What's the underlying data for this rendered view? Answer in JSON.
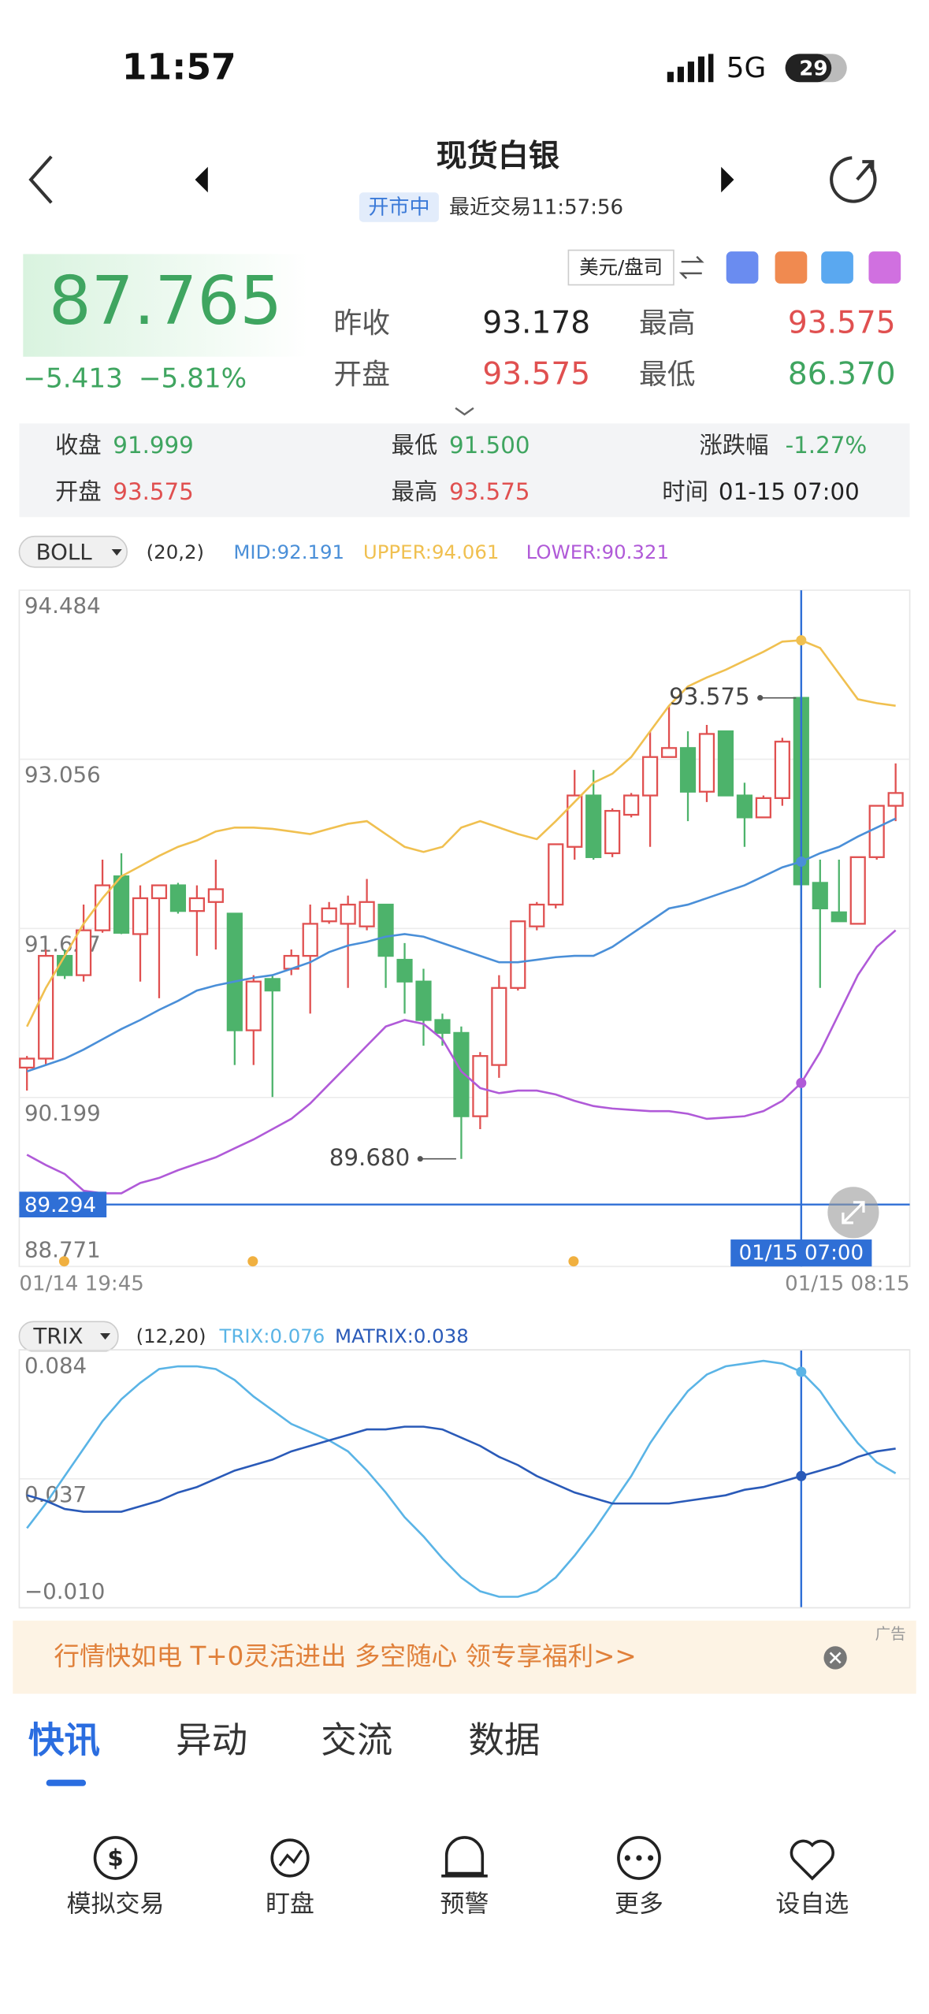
{
  "status": {
    "time": "11:57",
    "network": "5G",
    "battery": "29"
  },
  "header": {
    "title": "现货白银",
    "market_status": "开市中",
    "last_trade": "最近交易11:57:56"
  },
  "quote": {
    "price": "87.765",
    "change": "−5.413",
    "change_pct": "−5.81%",
    "unit": "美元/盘司",
    "stats": [
      {
        "label": "昨收",
        "value": "93.178"
      },
      {
        "label": "最高",
        "value": "93.575"
      },
      {
        "label": "开盘",
        "value": "93.575"
      },
      {
        "label": "最低",
        "value": "86.370"
      }
    ]
  },
  "info": [
    {
      "label": "收盘",
      "value": "91.999"
    },
    {
      "label": "最低",
      "value": "91.500"
    },
    {
      "label": "涨跌幅",
      "value": "-1.27%"
    },
    {
      "label": "开盘",
      "value": "93.575"
    },
    {
      "label": "最高",
      "value": "93.575"
    },
    {
      "label": "时间",
      "value": "01-15 07:00"
    }
  ],
  "chart_data": [
    {
      "type": "candlestick",
      "indicator": "BOLL",
      "params": "(20,2)",
      "grid": true,
      "up_color": "#e05050",
      "down_color": "#4db36b",
      "categories": [
        "01/14 19:45",
        null,
        null,
        null,
        null,
        null,
        null,
        null,
        null,
        null,
        null,
        null,
        null,
        null,
        null,
        null,
        null,
        null,
        null,
        null,
        null,
        null,
        null,
        null,
        null,
        null,
        null,
        null,
        null,
        null,
        null,
        null,
        null,
        null,
        null,
        null,
        null,
        null,
        null,
        null,
        null,
        "01/15 07:00",
        null,
        null,
        null,
        null,
        "01/15 08:15"
      ],
      "open": [
        90.451,
        90.527,
        91.395,
        91.232,
        91.611,
        92.067,
        91.579,
        91.882,
        91.991,
        91.774,
        91.85,
        91.752,
        90.766,
        91.2,
        91.286,
        91.395,
        91.687,
        91.666,
        91.644,
        91.828,
        91.362,
        91.178,
        90.853,
        90.744,
        90.04,
        90.473,
        91.124,
        91.644,
        91.828,
        92.316,
        92.75,
        92.262,
        92.587,
        92.75,
        93.075,
        93.151,
        92.782,
        93.292,
        92.75,
        92.565,
        92.728,
        93.575,
        92.012,
        91.763,
        91.666,
        92.229,
        92.663
      ],
      "high": [
        90.549,
        91.449,
        91.449,
        91.828,
        92.208,
        92.262,
        91.991,
        91.991,
        92.012,
        91.991,
        92.208,
        91.752,
        91.232,
        91.232,
        91.449,
        91.828,
        91.85,
        91.904,
        92.045,
        91.828,
        91.503,
        91.286,
        90.907,
        90.798,
        90.582,
        91.232,
        91.687,
        91.85,
        92.338,
        92.966,
        92.966,
        92.641,
        92.771,
        93.292,
        93.508,
        93.292,
        93.346,
        93.292,
        92.858,
        92.75,
        93.237,
        93.575,
        92.208,
        92.208,
        92.229,
        92.663,
        93.021
      ],
      "low": [
        90.257,
        90.473,
        91.2,
        91.178,
        91.59,
        91.579,
        91.178,
        91.037,
        91.752,
        91.395,
        91.449,
        90.473,
        90.473,
        90.202,
        91.232,
        90.907,
        91.666,
        91.124,
        91.611,
        91.124,
        90.907,
        90.636,
        90.636,
        89.68,
        89.931,
        90.365,
        91.102,
        91.611,
        91.796,
        92.208,
        92.208,
        92.229,
        92.565,
        92.316,
        93.075,
        92.533,
        92.695,
        92.75,
        92.316,
        92.565,
        92.663,
        91.5,
        91.124,
        91.687,
        91.666,
        92.208,
        92.533
      ],
      "close": [
        90.527,
        91.395,
        91.232,
        91.611,
        91.991,
        91.59,
        91.882,
        91.991,
        91.774,
        91.882,
        91.958,
        90.766,
        91.178,
        91.102,
        91.395,
        91.666,
        91.796,
        91.828,
        91.85,
        91.395,
        91.178,
        90.853,
        90.744,
        90.04,
        90.549,
        91.124,
        91.687,
        91.828,
        92.338,
        92.75,
        92.229,
        92.62,
        92.75,
        93.075,
        93.151,
        92.782,
        93.27,
        92.75,
        92.565,
        92.728,
        93.205,
        91.999,
        91.796,
        91.687,
        92.229,
        92.663,
        92.771
      ],
      "series": [
        {
          "name": "MID:92.191",
          "color": "#4a8fd8",
          "values": [
            90.419,
            90.473,
            90.527,
            90.603,
            90.69,
            90.777,
            90.853,
            90.939,
            91.015,
            91.102,
            91.145,
            91.178,
            91.21,
            91.232,
            91.286,
            91.341,
            91.427,
            91.482,
            91.514,
            91.557,
            91.579,
            91.557,
            91.503,
            91.449,
            91.395,
            91.341,
            91.341,
            91.362,
            91.384,
            91.395,
            91.395,
            91.471,
            91.579,
            91.687,
            91.796,
            91.828,
            91.882,
            91.937,
            91.991,
            92.067,
            92.143,
            92.191,
            92.262,
            92.316,
            92.403,
            92.479,
            92.555
          ]
        },
        {
          "name": "UPPER:94.061",
          "color": "#f0c050",
          "values": [
            90.798,
            91.124,
            91.395,
            91.666,
            91.882,
            92.067,
            92.153,
            92.24,
            92.316,
            92.37,
            92.446,
            92.479,
            92.479,
            92.468,
            92.446,
            92.424,
            92.468,
            92.511,
            92.533,
            92.424,
            92.316,
            92.273,
            92.316,
            92.479,
            92.533,
            92.479,
            92.424,
            92.381,
            92.533,
            92.695,
            92.858,
            92.934,
            93.075,
            93.292,
            93.508,
            93.671,
            93.747,
            93.812,
            93.888,
            93.964,
            94.05,
            94.061,
            93.996,
            93.779,
            93.563,
            93.53,
            93.508
          ]
        },
        {
          "name": "LOWER:90.321",
          "color": "#b05ad8",
          "values": [
            89.715,
            89.628,
            89.552,
            89.411,
            89.389,
            89.389,
            89.476,
            89.519,
            89.584,
            89.639,
            89.693,
            89.769,
            89.844,
            89.931,
            90.018,
            90.148,
            90.311,
            90.473,
            90.636,
            90.798,
            90.853,
            90.82,
            90.69,
            90.419,
            90.278,
            90.235,
            90.257,
            90.257,
            90.224,
            90.17,
            90.126,
            90.105,
            90.094,
            90.083,
            90.083,
            90.061,
            90.018,
            90.029,
            90.04,
            90.083,
            90.17,
            90.321,
            90.582,
            90.907,
            91.232,
            91.471,
            91.611
          ]
        }
      ],
      "ylim": [
        88.771,
        94.484
      ],
      "yticks": [
        94.484,
        93.056,
        91.627,
        90.199,
        88.771
      ],
      "crosshair": {
        "x": "01/15 07:00",
        "y": 89.294
      },
      "annotations": [
        {
          "text": "93.575",
          "value": 93.575
        },
        {
          "text": "89.680",
          "value": 89.68
        }
      ]
    },
    {
      "type": "line",
      "indicator": "TRIX",
      "params": "(12,20)",
      "grid": true,
      "series": [
        {
          "name": "TRIX:0.076",
          "color": "#5ab4e6",
          "values": [
            0.019,
            0.028,
            0.038,
            0.048,
            0.058,
            0.066,
            0.072,
            0.077,
            0.078,
            0.078,
            0.077,
            0.073,
            0.067,
            0.062,
            0.057,
            0.054,
            0.051,
            0.047,
            0.04,
            0.032,
            0.023,
            0.016,
            0.008,
            0.001,
            -0.004,
            -0.006,
            -0.006,
            -0.004,
            0.001,
            0.009,
            0.018,
            0.028,
            0.038,
            0.05,
            0.06,
            0.069,
            0.075,
            0.078,
            0.079,
            0.08,
            0.079,
            0.076,
            0.069,
            0.059,
            0.05,
            0.043,
            0.039
          ]
        },
        {
          "name": "MATRIX:0.038",
          "color": "#2a5ab8",
          "values": [
            0.031,
            0.029,
            0.026,
            0.025,
            0.025,
            0.025,
            0.027,
            0.029,
            0.032,
            0.034,
            0.037,
            0.04,
            0.042,
            0.044,
            0.047,
            0.049,
            0.051,
            0.053,
            0.055,
            0.055,
            0.056,
            0.056,
            0.055,
            0.052,
            0.049,
            0.045,
            0.042,
            0.038,
            0.035,
            0.032,
            0.03,
            0.028,
            0.028,
            0.028,
            0.028,
            0.029,
            0.03,
            0.031,
            0.033,
            0.034,
            0.036,
            0.038,
            0.04,
            0.042,
            0.045,
            0.047,
            0.048
          ]
        }
      ],
      "ylim": [
        -0.01,
        0.084
      ],
      "yticks": [
        0.084,
        0.037,
        {
          "value": -0.01,
          "label": "−0.010"
        }
      ]
    }
  ],
  "ad": {
    "text": "行情快如电 T+0灵活进出 多空随心 领专享福利>>",
    "tag": "广告"
  },
  "tabs": [
    "快讯",
    "异动",
    "交流",
    "数据"
  ],
  "nav": [
    "模拟交易",
    "盯盘",
    "预警",
    "更多",
    "设自选"
  ]
}
